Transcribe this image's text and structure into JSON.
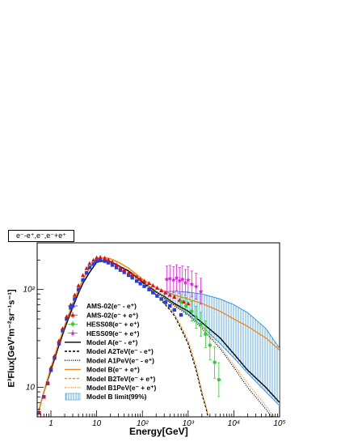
{
  "header": {
    "label": "e⁻-e⁺,e⁻,e⁻+e⁺"
  },
  "chart_data": {
    "type": "line",
    "xlabel": "Energy[GeV]",
    "ylabel": "E³Flux[GeV²m⁻²sr⁻¹s⁻¹]",
    "xscale": "log",
    "yscale": "log",
    "xlim": [
      0.5,
      100000
    ],
    "ylim": [
      5,
      300
    ],
    "x_ticks": [
      {
        "v": 1,
        "label": "1"
      },
      {
        "v": 10,
        "label": "10"
      },
      {
        "v": 100,
        "label": "10²"
      },
      {
        "v": 1000,
        "label": "10³"
      },
      {
        "v": 10000,
        "label": "10⁴"
      },
      {
        "v": 100000,
        "label": "10⁵"
      }
    ],
    "y_ticks": [
      {
        "v": 10,
        "label": "10"
      },
      {
        "v": 100,
        "label": "10²"
      }
    ],
    "legend_position": "bottom-left",
    "series": [
      {
        "name": "AMS-02(e⁻ - e⁺)",
        "style": "points",
        "marker": "square",
        "color": "#1f3fe0",
        "x": [
          0.55,
          0.7,
          0.85,
          1.0,
          1.2,
          1.5,
          1.8,
          2.2,
          2.7,
          3.3,
          4,
          5,
          6,
          7,
          8.5,
          10,
          12,
          15,
          18,
          22,
          27,
          33,
          40,
          50,
          60,
          75,
          90,
          110,
          140,
          170,
          210,
          260,
          320,
          400,
          500,
          700
        ],
        "y": [
          5.5,
          8,
          11,
          15,
          20,
          28,
          38,
          50,
          65,
          80,
          100,
          125,
          148,
          168,
          182,
          195,
          198,
          195,
          188,
          178,
          168,
          158,
          150,
          140,
          132,
          122,
          115,
          108,
          100,
          93,
          86,
          80,
          74,
          68,
          62,
          55
        ]
      },
      {
        "name": "AMS-02(e⁻ + e⁺)",
        "style": "points",
        "marker": "triangle",
        "color": "#e01010",
        "x": [
          0.55,
          0.7,
          0.85,
          1.0,
          1.2,
          1.5,
          1.8,
          2.2,
          2.7,
          3.3,
          4,
          5,
          6,
          7,
          8.5,
          10,
          12,
          15,
          18,
          22,
          27,
          33,
          40,
          50,
          60,
          75,
          90,
          110,
          140,
          170,
          210,
          260,
          320,
          400,
          500,
          650,
          800,
          1000
        ],
        "y": [
          5.5,
          8,
          11,
          16,
          21,
          30,
          40,
          53,
          70,
          88,
          110,
          140,
          165,
          185,
          200,
          212,
          214,
          210,
          202,
          192,
          180,
          168,
          160,
          150,
          143,
          135,
          128,
          122,
          116,
          110,
          104,
          98,
          93,
          88,
          84,
          78,
          75,
          72
        ]
      },
      {
        "name": "HESS08(e⁻ + e⁺)",
        "style": "points",
        "marker": "circle",
        "color": "#33cc33",
        "x": [
          700,
          900,
          1200,
          1500,
          1900,
          2400,
          3000,
          3800,
          4700
        ],
        "y": [
          75,
          68,
          60,
          52,
          44,
          35,
          27,
          18,
          12
        ]
      },
      {
        "name": "HESS09(e⁻ + e⁺)",
        "style": "points",
        "marker": "star",
        "color": "#e020e0",
        "x": [
          340,
          400,
          480,
          560,
          650,
          750,
          870,
          1000,
          1200,
          1500,
          1900
        ],
        "y": [
          128,
          130,
          126,
          132,
          124,
          128,
          118,
          126,
          114,
          108,
          96
        ]
      },
      {
        "name": "Model A(e⁻ - e⁺)",
        "style": "solid",
        "color": "#000000",
        "x": [
          0.5,
          0.7,
          1,
          1.5,
          2,
          3,
          4,
          5,
          7,
          10,
          15,
          20,
          30,
          50,
          100,
          200,
          300,
          500,
          1000,
          2000,
          5000,
          10000,
          20000,
          50000,
          100000
        ],
        "y": [
          5,
          9,
          15,
          27,
          40,
          66,
          92,
          116,
          150,
          190,
          198,
          192,
          175,
          155,
          120,
          95,
          85,
          72,
          60,
          46,
          32,
          22,
          15,
          10,
          7
        ]
      },
      {
        "name": "Model A2TeV(e⁻ - e⁺)",
        "style": "dashed",
        "color": "#000000",
        "x": [
          0.5,
          0.7,
          1,
          1.5,
          2,
          3,
          4,
          5,
          7,
          10,
          15,
          20,
          30,
          50,
          100,
          200,
          300,
          400,
          500,
          700,
          1000,
          1500,
          2000,
          2500,
          3000
        ],
        "y": [
          5,
          9,
          15,
          27,
          40,
          66,
          92,
          116,
          150,
          190,
          198,
          192,
          175,
          155,
          118,
          88,
          72,
          62,
          54,
          40,
          28,
          15,
          8.5,
          6,
          4
        ]
      },
      {
        "name": "Model A1PeV(e⁻ - e⁺)",
        "style": "dotted",
        "color": "#000000",
        "x": [
          0.5,
          0.7,
          1,
          1.5,
          2,
          3,
          4,
          5,
          7,
          10,
          15,
          20,
          30,
          50,
          100,
          200,
          300,
          500,
          1000,
          2000,
          5000,
          10000,
          20000,
          50000,
          80000
        ],
        "y": [
          5,
          9,
          15,
          27,
          40,
          66,
          92,
          116,
          150,
          190,
          198,
          192,
          175,
          155,
          120,
          93,
          82,
          68,
          55,
          40,
          25,
          16,
          10,
          6,
          4.5
        ]
      },
      {
        "name": "Model B(e⁻ + e⁺)",
        "style": "solid",
        "color": "#f08a1a",
        "x": [
          0.5,
          0.7,
          1,
          1.5,
          2,
          3,
          4,
          5,
          7,
          10,
          15,
          20,
          30,
          50,
          100,
          200,
          300,
          500,
          1000,
          2000,
          5000,
          10000,
          20000,
          50000,
          100000
        ],
        "y": [
          5,
          9,
          16,
          29,
          43,
          72,
          100,
          128,
          165,
          205,
          212,
          206,
          190,
          165,
          128,
          104,
          96,
          88,
          80,
          72,
          60,
          50,
          42,
          32,
          24
        ]
      },
      {
        "name": "Model B2TeV(e⁻ + e⁺)",
        "style": "dashed",
        "color": "#f08a1a",
        "x": [
          0.5,
          0.7,
          1,
          1.5,
          2,
          3,
          4,
          5,
          7,
          10,
          15,
          20,
          30,
          50,
          100,
          200,
          300,
          400,
          500,
          700,
          1000,
          1500,
          2000,
          2500,
          3000
        ],
        "y": [
          5,
          9,
          16,
          29,
          43,
          72,
          100,
          128,
          165,
          205,
          212,
          206,
          190,
          165,
          124,
          90,
          74,
          64,
          56,
          42,
          30,
          16,
          9,
          6.2,
          4.2
        ]
      },
      {
        "name": "Model B1PeV(e⁻ + e⁺)",
        "style": "dotted",
        "color": "#f08a1a",
        "x": [
          0.5,
          0.7,
          1,
          1.5,
          2,
          3,
          4,
          5,
          7,
          10,
          15,
          20,
          30,
          50,
          100,
          200,
          300,
          500,
          1000,
          2000,
          5000,
          10000,
          20000,
          50000,
          80000
        ],
        "y": [
          5,
          9,
          16,
          29,
          43,
          72,
          100,
          128,
          165,
          205,
          212,
          206,
          190,
          165,
          124,
          96,
          84,
          70,
          57,
          42,
          26,
          17,
          11,
          6.5,
          4.8
        ]
      },
      {
        "name": "Model B limit(99%)",
        "style": "band",
        "color": "#3399dd",
        "x": [
          300,
          500,
          1000,
          2000,
          5000,
          10000,
          20000,
          50000,
          100000
        ],
        "y_low": [
          80,
          70,
          56,
          42,
          28,
          20,
          14,
          9,
          6.5
        ],
        "y_high": [
          95,
          96,
          94,
          90,
          80,
          70,
          58,
          40,
          25
        ]
      }
    ]
  }
}
